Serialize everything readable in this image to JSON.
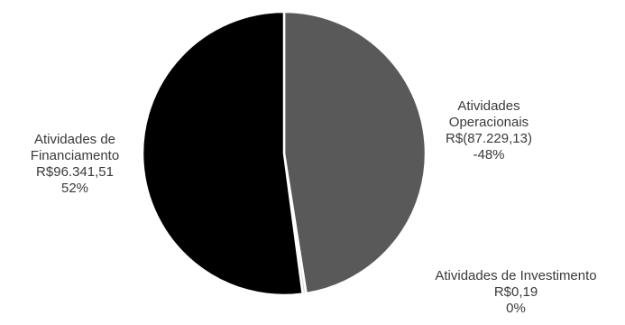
{
  "chart_data": {
    "type": "pie",
    "slices": [
      {
        "name_lines": [
          "Atividades",
          "Operacionais"
        ],
        "value_label": "R$(87.229,13)",
        "percent_label": "-48%",
        "value": -87229.13,
        "share": 0.475,
        "color": "#595959"
      },
      {
        "name_lines": [
          "Atividades de Investimento"
        ],
        "value_label": "R$0,19",
        "percent_label": "0%",
        "value": 0.19,
        "share": 0.004,
        "color": "#d9d9d9"
      },
      {
        "name_lines": [
          "Atividades de",
          "Financiamento"
        ],
        "value_label": "R$96.341,51",
        "percent_label": "52%",
        "value": 96341.51,
        "share": 0.521,
        "color": "#000000"
      }
    ],
    "start_angle_deg": 0,
    "direction": "clockwise",
    "separator_color": "#ffffff"
  }
}
